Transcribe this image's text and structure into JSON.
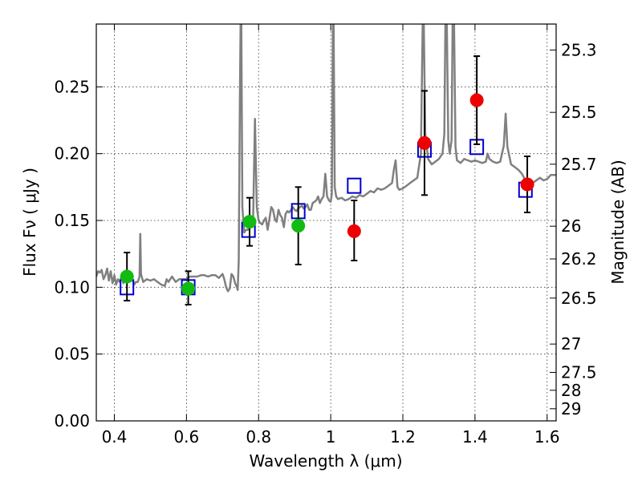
{
  "chart_data": {
    "type": "scatter",
    "xlabel": "Wavelength  λ (μm)",
    "ylabel": "Flux  Fν  ( μJy )",
    "y2label": "Magnitude (AB)",
    "xlim": [
      0.35,
      1.625
    ],
    "ylim": [
      0.0,
      0.297
    ],
    "xticks": [
      0.4,
      0.6,
      0.8,
      1.0,
      1.2,
      1.4,
      1.6
    ],
    "xtick_labels": [
      "0.4",
      "0.6",
      "0.8",
      "1",
      "1.2",
      "1.4",
      "1.6"
    ],
    "yticks": [
      0.0,
      0.05,
      0.1,
      0.15,
      0.2,
      0.25
    ],
    "ytick_labels": [
      "0.00",
      "0.05",
      "0.10",
      "0.15",
      "0.20",
      "0.25"
    ],
    "magnitude_ticks": [
      {
        "label": "25.3",
        "flux": 0.2776
      },
      {
        "label": "25.5",
        "flux": 0.2309
      },
      {
        "label": "25.7",
        "flux": 0.1921
      },
      {
        "label": "26",
        "flux": 0.1457
      },
      {
        "label": "26.2",
        "flux": 0.1212
      },
      {
        "label": "26.5",
        "flux": 0.0919
      },
      {
        "label": "27",
        "flux": 0.0575
      },
      {
        "label": "27.5",
        "flux": 0.0363
      },
      {
        "label": "28",
        "flux": 0.0229
      },
      {
        "label": "29",
        "flux": 0.0091
      }
    ],
    "grid": true,
    "series": [
      {
        "kind": "line",
        "color": "#808080",
        "points": [
          [
            0.35,
            0.108
          ],
          [
            0.355,
            0.112
          ],
          [
            0.36,
            0.111
          ],
          [
            0.365,
            0.113
          ],
          [
            0.37,
            0.106
          ],
          [
            0.375,
            0.109
          ],
          [
            0.38,
            0.114
          ],
          [
            0.385,
            0.105
          ],
          [
            0.39,
            0.112
          ],
          [
            0.395,
            0.103
          ],
          [
            0.4,
            0.109
          ],
          [
            0.405,
            0.102
          ],
          [
            0.41,
            0.106
          ],
          [
            0.415,
            0.104
          ],
          [
            0.42,
            0.108
          ],
          [
            0.425,
            0.103
          ],
          [
            0.43,
            0.11
          ],
          [
            0.435,
            0.106
          ],
          [
            0.44,
            0.107
          ],
          [
            0.445,
            0.105
          ],
          [
            0.45,
            0.106
          ],
          [
            0.455,
            0.102
          ],
          [
            0.46,
            0.104
          ],
          [
            0.465,
            0.104
          ],
          [
            0.47,
            0.108
          ],
          [
            0.472,
            0.14
          ],
          [
            0.474,
            0.11
          ],
          [
            0.48,
            0.104
          ],
          [
            0.49,
            0.106
          ],
          [
            0.5,
            0.105
          ],
          [
            0.51,
            0.106
          ],
          [
            0.52,
            0.104
          ],
          [
            0.53,
            0.102
          ],
          [
            0.54,
            0.101
          ],
          [
            0.545,
            0.106
          ],
          [
            0.55,
            0.104
          ],
          [
            0.56,
            0.108
          ],
          [
            0.57,
            0.104
          ],
          [
            0.58,
            0.106
          ],
          [
            0.59,
            0.106
          ],
          [
            0.6,
            0.106
          ],
          [
            0.61,
            0.108
          ],
          [
            0.62,
            0.108
          ],
          [
            0.63,
            0.108
          ],
          [
            0.64,
            0.109
          ],
          [
            0.65,
            0.109
          ],
          [
            0.66,
            0.108
          ],
          [
            0.67,
            0.109
          ],
          [
            0.68,
            0.109
          ],
          [
            0.69,
            0.107
          ],
          [
            0.7,
            0.11
          ],
          [
            0.705,
            0.106
          ],
          [
            0.71,
            0.1
          ],
          [
            0.715,
            0.097
          ],
          [
            0.72,
            0.099
          ],
          [
            0.725,
            0.11
          ],
          [
            0.73,
            0.108
          ],
          [
            0.735,
            0.103
          ],
          [
            0.74,
            0.1
          ],
          [
            0.742,
            0.098
          ],
          [
            0.745,
            0.12
          ],
          [
            0.748,
            0.24
          ],
          [
            0.75,
            0.297
          ],
          [
            0.752,
            0.297
          ],
          [
            0.755,
            0.16
          ],
          [
            0.76,
            0.141
          ],
          [
            0.765,
            0.143
          ],
          [
            0.77,
            0.143
          ],
          [
            0.775,
            0.146
          ],
          [
            0.78,
            0.148
          ],
          [
            0.785,
            0.153
          ],
          [
            0.79,
            0.226
          ],
          [
            0.795,
            0.16
          ],
          [
            0.8,
            0.15
          ],
          [
            0.805,
            0.148
          ],
          [
            0.81,
            0.147
          ],
          [
            0.815,
            0.15
          ],
          [
            0.82,
            0.152
          ],
          [
            0.825,
            0.143
          ],
          [
            0.83,
            0.151
          ],
          [
            0.835,
            0.16
          ],
          [
            0.84,
            0.158
          ],
          [
            0.845,
            0.151
          ],
          [
            0.85,
            0.149
          ],
          [
            0.855,
            0.158
          ],
          [
            0.86,
            0.154
          ],
          [
            0.865,
            0.152
          ],
          [
            0.87,
            0.145
          ],
          [
            0.875,
            0.155
          ],
          [
            0.88,
            0.157
          ],
          [
            0.885,
            0.156
          ],
          [
            0.89,
            0.158
          ],
          [
            0.895,
            0.16
          ],
          [
            0.9,
            0.158
          ],
          [
            0.905,
            0.157
          ],
          [
            0.91,
            0.159
          ],
          [
            0.915,
            0.16
          ],
          [
            0.92,
            0.161
          ],
          [
            0.925,
            0.159
          ],
          [
            0.93,
            0.16
          ],
          [
            0.935,
            0.162
          ],
          [
            0.94,
            0.158
          ],
          [
            0.945,
            0.158
          ],
          [
            0.95,
            0.163
          ],
          [
            0.955,
            0.164
          ],
          [
            0.96,
            0.165
          ],
          [
            0.965,
            0.168
          ],
          [
            0.97,
            0.163
          ],
          [
            0.975,
            0.166
          ],
          [
            0.98,
            0.168
          ],
          [
            0.985,
            0.185
          ],
          [
            0.99,
            0.168
          ],
          [
            0.995,
            0.165
          ],
          [
            1.0,
            0.164
          ],
          [
            1.003,
            0.17
          ],
          [
            1.006,
            0.297
          ],
          [
            1.008,
            0.297
          ],
          [
            1.011,
            0.175
          ],
          [
            1.015,
            0.168
          ],
          [
            1.02,
            0.166
          ],
          [
            1.03,
            0.167
          ],
          [
            1.04,
            0.165
          ],
          [
            1.05,
            0.166
          ],
          [
            1.06,
            0.168
          ],
          [
            1.07,
            0.167
          ],
          [
            1.08,
            0.169
          ],
          [
            1.09,
            0.168
          ],
          [
            1.1,
            0.17
          ],
          [
            1.11,
            0.172
          ],
          [
            1.12,
            0.171
          ],
          [
            1.13,
            0.174
          ],
          [
            1.14,
            0.173
          ],
          [
            1.15,
            0.174
          ],
          [
            1.16,
            0.176
          ],
          [
            1.17,
            0.178
          ],
          [
            1.175,
            0.188
          ],
          [
            1.18,
            0.195
          ],
          [
            1.185,
            0.175
          ],
          [
            1.19,
            0.173
          ],
          [
            1.2,
            0.174
          ],
          [
            1.21,
            0.176
          ],
          [
            1.22,
            0.178
          ],
          [
            1.23,
            0.18
          ],
          [
            1.24,
            0.182
          ],
          [
            1.25,
            0.2
          ],
          [
            1.255,
            0.297
          ],
          [
            1.258,
            0.297
          ],
          [
            1.262,
            0.215
          ],
          [
            1.27,
            0.196
          ],
          [
            1.28,
            0.192
          ],
          [
            1.29,
            0.194
          ],
          [
            1.3,
            0.196
          ],
          [
            1.31,
            0.2
          ],
          [
            1.315,
            0.215
          ],
          [
            1.318,
            0.297
          ],
          [
            1.322,
            0.297
          ],
          [
            1.326,
            0.21
          ],
          [
            1.33,
            0.2
          ],
          [
            1.335,
            0.21
          ],
          [
            1.338,
            0.297
          ],
          [
            1.342,
            0.297
          ],
          [
            1.346,
            0.205
          ],
          [
            1.35,
            0.195
          ],
          [
            1.36,
            0.193
          ],
          [
            1.37,
            0.196
          ],
          [
            1.38,
            0.195
          ],
          [
            1.39,
            0.194
          ],
          [
            1.4,
            0.195
          ],
          [
            1.41,
            0.194
          ],
          [
            1.42,
            0.193
          ],
          [
            1.43,
            0.194
          ],
          [
            1.435,
            0.2
          ],
          [
            1.44,
            0.196
          ],
          [
            1.45,
            0.194
          ],
          [
            1.46,
            0.193
          ],
          [
            1.47,
            0.194
          ],
          [
            1.48,
            0.206
          ],
          [
            1.485,
            0.23
          ],
          [
            1.49,
            0.205
          ],
          [
            1.5,
            0.192
          ],
          [
            1.51,
            0.19
          ],
          [
            1.52,
            0.188
          ],
          [
            1.53,
            0.185
          ],
          [
            1.54,
            0.18
          ],
          [
            1.55,
            0.176
          ],
          [
            1.56,
            0.178
          ],
          [
            1.57,
            0.18
          ],
          [
            1.58,
            0.182
          ],
          [
            1.59,
            0.18
          ],
          [
            1.6,
            0.181
          ],
          [
            1.61,
            0.184
          ],
          [
            1.625,
            0.184
          ]
        ]
      },
      {
        "kind": "open-square",
        "color": "#0000cc",
        "points": [
          [
            0.435,
            0.1
          ],
          [
            0.605,
            0.1
          ],
          [
            0.772,
            0.143
          ],
          [
            0.91,
            0.157
          ],
          [
            1.065,
            0.176
          ],
          [
            1.26,
            0.203
          ],
          [
            1.405,
            0.205
          ],
          [
            1.54,
            0.173
          ]
        ]
      },
      {
        "kind": "dot-with-errorbar",
        "color": "#11bb11",
        "points": [
          {
            "x": 0.435,
            "y": 0.108,
            "ylo": 0.09,
            "yhi": 0.126
          },
          {
            "x": 0.605,
            "y": 0.099,
            "ylo": 0.087,
            "yhi": 0.112
          },
          {
            "x": 0.775,
            "y": 0.149,
            "ylo": 0.131,
            "yhi": 0.167
          },
          {
            "x": 0.91,
            "y": 0.146,
            "ylo": 0.117,
            "yhi": 0.175
          }
        ]
      },
      {
        "kind": "dot-with-errorbar",
        "color": "#ee0000",
        "points": [
          {
            "x": 1.065,
            "y": 0.142,
            "ylo": 0.12,
            "yhi": 0.165
          },
          {
            "x": 1.26,
            "y": 0.208,
            "ylo": 0.169,
            "yhi": 0.247
          },
          {
            "x": 1.405,
            "y": 0.24,
            "ylo": 0.207,
            "yhi": 0.273
          },
          {
            "x": 1.545,
            "y": 0.177,
            "ylo": 0.156,
            "yhi": 0.198
          }
        ]
      }
    ]
  }
}
